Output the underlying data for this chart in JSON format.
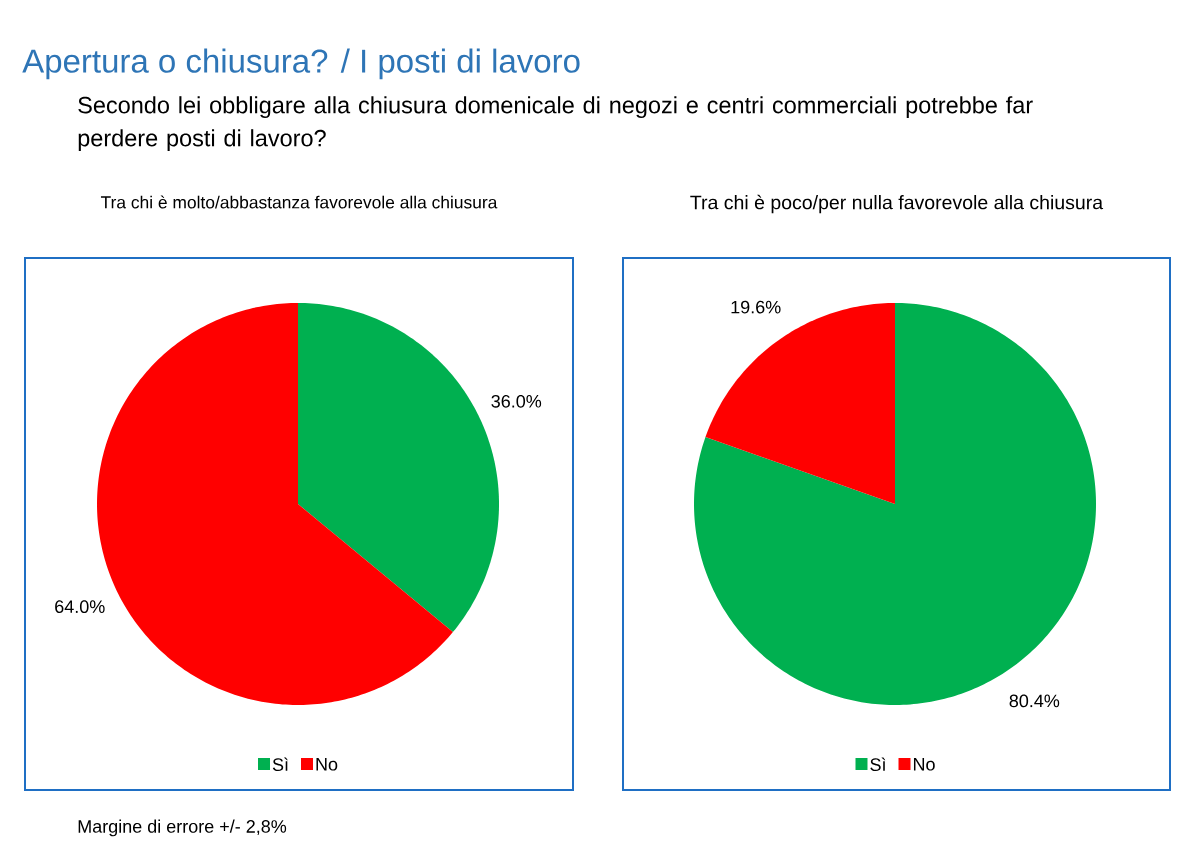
{
  "chart_data": [
    {
      "type": "pie",
      "title": "Tra chi è molto/abbastanza favorevole alla chiusura",
      "categories": [
        "Sì",
        "No"
      ],
      "values": [
        36.0,
        64.0
      ],
      "colors": [
        "#00b050",
        "#ff0000"
      ],
      "value_labels": [
        "36.0%",
        "64.0%"
      ],
      "legend": "bottom",
      "annotations": [
        "Apertura o chiusura? / I posti di lavoro",
        "Secondo lei obbligare alla chiusura domenicale di negozi e centri commerciali potrebbe far perdere posti di lavoro?",
        "Margine di errore +/- 2,8%"
      ]
    },
    {
      "type": "pie",
      "title": "Tra chi è poco/per nulla favorevole alla chiusura",
      "categories": [
        "Sì",
        "No"
      ],
      "values": [
        80.4,
        19.6
      ],
      "colors": [
        "#00b050",
        "#ff0000"
      ],
      "value_labels": [
        "80.4%",
        "19.6%"
      ],
      "legend": "bottom"
    }
  ]
}
